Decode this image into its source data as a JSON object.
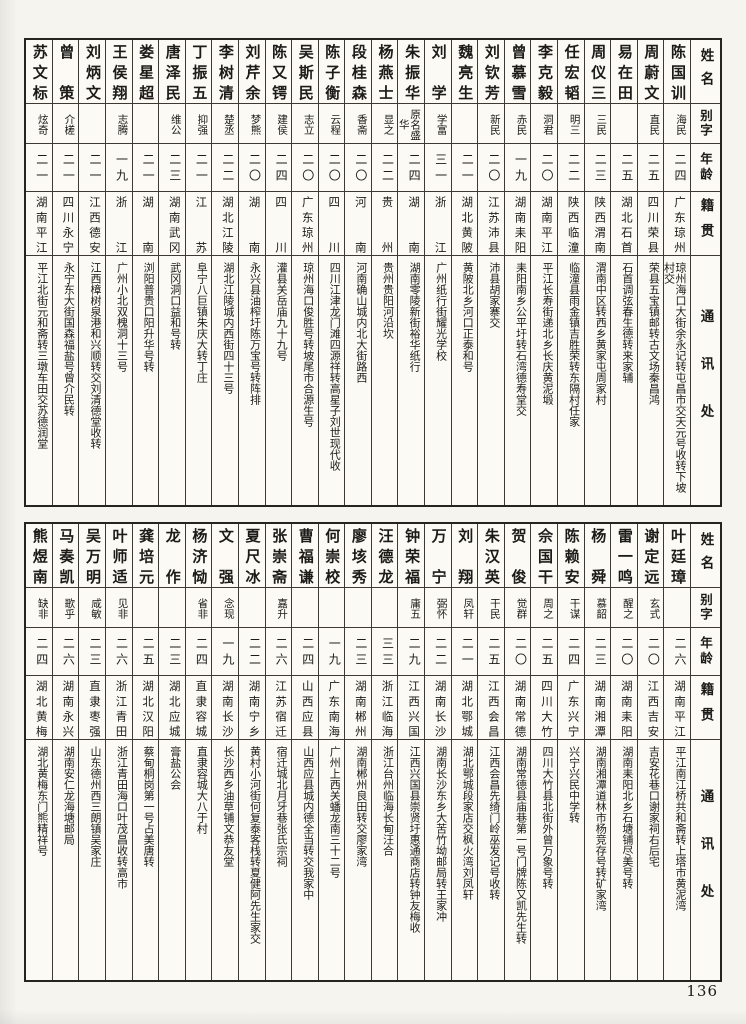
{
  "page": {
    "number": "136"
  },
  "headers": {
    "name": "姓名",
    "zi": "别字",
    "age": "年龄",
    "native": "籍贯",
    "address": "通讯处"
  },
  "tables": [
    {
      "id": "top",
      "entries": [
        {
          "name": "陈国训",
          "zi": "海民",
          "age": "二四",
          "native": "广东琼州",
          "address": "琼州海口大街余永记转屯昌市交天元号收转下坡村交"
        },
        {
          "name": "周蔚文",
          "zi": "直民",
          "age": "二五",
          "native": "四川荣县",
          "address": "荣县五宝镇邮转古文场秦昌鸿"
        },
        {
          "name": "易在田",
          "zi": "",
          "age": "二五",
          "native": "湖北石首",
          "address": "石首调弦春生德转来家辅"
        },
        {
          "name": "周仪三",
          "zi": "三民",
          "age": "二三",
          "native": "陕西渭南",
          "address": "渭南中区转西乡黄家屯周家村"
        },
        {
          "name": "任宏韬",
          "zi": "明三",
          "age": "二二",
          "native": "陕西临潼",
          "address": "临潼县雨金镇吉胜荣转东隔村任家"
        },
        {
          "name": "李克毅",
          "zi": "洞君",
          "age": "二〇",
          "native": "湖南平江",
          "address": "平江长寿街递北乡长庆黄泥塅"
        },
        {
          "name": "曾慕雪",
          "zi": "赤民",
          "age": "一九",
          "native": "湖南耒阳",
          "address": "耒阳南乡公平圩转石湾德寿堂交"
        },
        {
          "name": "刘钦芳",
          "zi": "新民",
          "age": "二〇",
          "native": "江苏沛县",
          "address": "沛县胡家寨交"
        },
        {
          "name": "魏亮生",
          "zi": "",
          "age": "二一",
          "native": "湖北黄陂",
          "address": "黄陂北乡河口正泰和号"
        },
        {
          "name": "刘学",
          "zi": "学富",
          "age": "三一",
          "native": "浙江",
          "address": "广州纸行街耀光学校"
        },
        {
          "name": "朱振华",
          "zi": "原名盛华",
          "age": "二四",
          "native": "湖南",
          "address": "湖南零陵新街裕华纸行"
        },
        {
          "name": "杨燕士",
          "zi": "显之",
          "age": "二二",
          "native": "贵州",
          "address": "贵州贵阳河沿坎"
        },
        {
          "name": "段桂森",
          "zi": "香斋",
          "age": "二〇",
          "native": "河南",
          "address": "河南确山城内北大街路西"
        },
        {
          "name": "陈子衡",
          "zi": "云程",
          "age": "二〇",
          "native": "四川",
          "address": "四川江津龙门滩四源祥转高星子刘世现代收"
        },
        {
          "name": "吴斯民",
          "zi": "志立",
          "age": "二〇",
          "native": "广东琼州",
          "address": "琼州海口俊胜号转坡尾市合源生号"
        },
        {
          "name": "陈又锷",
          "zi": "建侯",
          "age": "二四",
          "native": "四川",
          "address": "灌县关岳庙九十九号"
        },
        {
          "name": "刘芹余",
          "zi": "梦熊",
          "age": "二〇",
          "native": "湖南",
          "address": "永兴县油榨圩陈万宝号转阵排"
        },
        {
          "name": "李树清",
          "zi": "楚丞",
          "age": "二二",
          "native": "湖北江陵",
          "address": "湖北江陵城内西街四十三号"
        },
        {
          "name": "丁振五",
          "zi": "抑强",
          "age": "二一",
          "native": "江苏",
          "address": "阜宁八巨镇朱庆大转丁庄"
        },
        {
          "name": "唐泽民",
          "zi": "维公",
          "age": "二三",
          "native": "湖南武冈",
          "address": "武冈洞口益和号转"
        },
        {
          "name": "娄星超",
          "zi": "",
          "age": "二一",
          "native": "湖南",
          "address": "浏阳普贵口阳升华号转"
        },
        {
          "name": "王侯翔",
          "zi": "志腾",
          "age": "一九",
          "native": "浙江",
          "address": "广州小北双槐洞十三号"
        },
        {
          "name": "刘炳文",
          "zi": "",
          "age": "二一",
          "native": "江西德安",
          "address": "江西樟树泉港和兴顺转交刘清德堂收转"
        },
        {
          "name": "曾策",
          "zi": "介槎",
          "age": "二一",
          "native": "四川永宁",
          "address": "永宁东大街国森福盐号曾介民转"
        },
        {
          "name": "苏文标",
          "zi": "炫奇",
          "age": "二一",
          "native": "湖南平江",
          "address": "平江北街元和斋转三墩车田交苏德润堂"
        }
      ]
    },
    {
      "id": "bottom",
      "entries": [
        {
          "name": "叶廷璋",
          "zi": "",
          "age": "二六",
          "native": "湖南平江",
          "address": "平江南江桥共和斋转上塔市黄泥湾"
        },
        {
          "name": "谢定远",
          "zi": "玄式",
          "age": "二〇",
          "native": "江西吉安",
          "address": "吉安花巷口谢家祠右后宅"
        },
        {
          "name": "雷一鸣",
          "zi": "醒之",
          "age": "二〇",
          "native": "湖南耒阳",
          "address": "湖南耒阳北乡石塘铺尽美号转"
        },
        {
          "name": "杨舜",
          "zi": "慕韶",
          "age": "二三",
          "native": "湖南湘潭",
          "address": "湖南湘潭道林市杨竞存号转矿家湾"
        },
        {
          "name": "陈赖安",
          "zi": "干谋",
          "age": "二四",
          "native": "广东兴宁",
          "address": "兴宁兴民中学转"
        },
        {
          "name": "佘国干",
          "zi": "周之",
          "age": "二五",
          "native": "四川大竹",
          "address": "四川大竹县北街外曾万象号转"
        },
        {
          "name": "贺俊",
          "zi": "觉群",
          "age": "二〇",
          "native": "湖南常德",
          "address": "湖南常德县庙巷第一号门牌陈又凯先生转"
        },
        {
          "name": "朱汉英",
          "zi": "干民",
          "age": "二五",
          "native": "江西会昌",
          "address": "江西会昌先绮门岭巫发记号收转"
        },
        {
          "name": "刘翔",
          "zi": "凤轩",
          "age": "二一",
          "native": "湖北鄂城",
          "address": "湖北鄂城段家店交枫火湾刘凤轩"
        },
        {
          "name": "万宁",
          "zi": "弼怀",
          "age": "二二",
          "native": "湖南长沙",
          "address": "湖南长沙东乡大苦竹坳邮局转王家冲"
        },
        {
          "name": "钟荣福",
          "zi": "庸五",
          "age": "二九",
          "native": "江西兴国",
          "address": "江西兴国县崇贤圩惠通商店转钟友梅收"
        },
        {
          "name": "汪德龙",
          "zi": "",
          "age": "三三",
          "native": "浙江临海",
          "address": "浙江台州临海长甸汪合"
        },
        {
          "name": "廖垓秀",
          "zi": "",
          "age": "二三",
          "native": "湖南郴州",
          "address": "湖南郴州良田转交廖家湾"
        },
        {
          "name": "何崇校",
          "zi": "",
          "age": "一九",
          "native": "广东南海",
          "address": "广州上西关蟠龙南三十二号"
        },
        {
          "name": "曹福谦",
          "zi": "",
          "age": "二四",
          "native": "山西应县",
          "address": "山西应县城内德全当转交我家中"
        },
        {
          "name": "张崇斋",
          "zi": "嘉升",
          "age": "二六",
          "native": "江苏宿迁",
          "address": "宿迁城北月牙巷张氏宗祠"
        },
        {
          "name": "夏尺冰",
          "zi": "",
          "age": "二二",
          "native": "湖南宁乡",
          "address": "黄村小河街何复泰客栈转夏健阿先生家交"
        },
        {
          "name": "文强",
          "zi": "念现",
          "age": "一九",
          "native": "湖南长沙",
          "address": "长沙西乡油草铺文恭友堂"
        },
        {
          "name": "杨济恸",
          "zi": "省非",
          "age": "二四",
          "native": "直隶容城",
          "address": "直隶容城大八于村"
        },
        {
          "name": "龙作",
          "zi": "",
          "age": "二三",
          "native": "湖北应城",
          "address": "膏盐公会"
        },
        {
          "name": "龚培元",
          "zi": "",
          "age": "二五",
          "native": "湖北汉阳",
          "address": "蔡甸桐岗第一号占美唐转"
        },
        {
          "name": "叶师适",
          "zi": "见非",
          "age": "二六",
          "native": "浙江青田",
          "address": "浙江青田海口叶茂昌收转高市"
        },
        {
          "name": "吴万明",
          "zi": "咸敏",
          "age": "二三",
          "native": "直隶枣强",
          "address": "山东德州西三朗镇吴家庄"
        },
        {
          "name": "马奏凯",
          "zi": "歌乎",
          "age": "二六",
          "native": "湖南永兴",
          "address": "湖南安仁龙海塘邮局"
        },
        {
          "name": "熊煜南",
          "zi": "缺非",
          "age": "二四",
          "native": "湖北黄梅",
          "address": "湖北黄梅东门熊精祥号"
        }
      ]
    }
  ]
}
